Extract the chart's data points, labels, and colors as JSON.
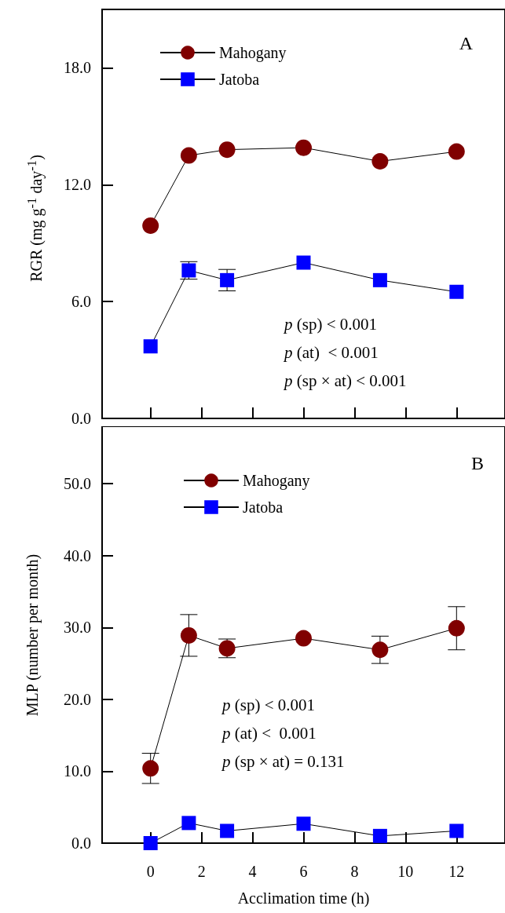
{
  "chart_data": [
    {
      "type": "line",
      "title": "A",
      "ylabel": "RGR (mg g$^{-1}$ day$^{-1}$)",
      "x": [
        0,
        1.5,
        3,
        6,
        9,
        12
      ],
      "xlim": [
        -1.9,
        13.9
      ],
      "xticks": [
        0,
        2,
        4,
        6,
        8,
        10,
        12
      ],
      "ylim": [
        0,
        21
      ],
      "yticks": [
        {
          "value": 0,
          "label": "0.0"
        },
        {
          "value": 6,
          "label": "6.0"
        },
        {
          "value": 12,
          "label": "12.0"
        },
        {
          "value": 18,
          "label": "18.0"
        }
      ],
      "tick_labels": "y",
      "legend": "top left",
      "line_style": "solid",
      "series": [
        {
          "name": "Mahogany",
          "color": "#800000",
          "marker": "circle",
          "values": [
            9.9,
            13.5,
            13.8,
            13.9,
            13.2,
            13.7
          ]
        },
        {
          "name": "Jatoba",
          "color": "#0000ff",
          "marker": "square",
          "values": [
            3.7,
            7.6,
            7.1,
            8.0,
            7.1,
            6.5
          ],
          "errors": [
            null,
            0.45,
            0.55,
            null,
            null,
            null
          ]
        }
      ],
      "annotations": [
        "p (sp) < 0.001",
        "p (at)  < 0.001",
        "p (sp × at) < 0.001"
      ]
    },
    {
      "type": "line",
      "title": "B",
      "xlabel": "Acclimation time (h)",
      "ylabel": "MLP (number per month)",
      "x": [
        0,
        1.5,
        3,
        6,
        9,
        12
      ],
      "xlim": [
        -1.9,
        13.9
      ],
      "xticks": [
        0,
        2,
        4,
        6,
        8,
        10,
        12
      ],
      "ylim": [
        0,
        58
      ],
      "yticks": [
        {
          "value": 0,
          "label": "0.0"
        },
        {
          "value": 10,
          "label": "10.0"
        },
        {
          "value": 20,
          "label": "20.0"
        },
        {
          "value": 30,
          "label": "30.0"
        },
        {
          "value": 40,
          "label": "40.0"
        },
        {
          "value": 50,
          "label": "50.0"
        }
      ],
      "legend": "top left",
      "line_style": "solid",
      "series": [
        {
          "name": "Mahogany",
          "color": "#800000",
          "marker": "circle",
          "values": [
            10.4,
            28.9,
            27.1,
            28.5,
            26.9,
            29.9
          ],
          "errors": [
            2.1,
            2.9,
            1.3,
            null,
            1.9,
            3.0
          ]
        },
        {
          "name": "Jatoba",
          "color": "#0000ff",
          "marker": "square",
          "values": [
            0,
            2.8,
            1.7,
            2.7,
            1.0,
            1.7
          ]
        }
      ],
      "annotations": [
        "p (sp) < 0.001",
        "p (at) <  0.001",
        "p (sp × at) = 0.131"
      ]
    }
  ]
}
